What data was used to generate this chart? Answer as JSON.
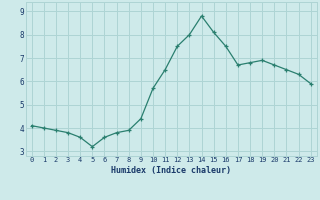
{
  "x": [
    0,
    1,
    2,
    3,
    4,
    5,
    6,
    7,
    8,
    9,
    10,
    11,
    12,
    13,
    14,
    15,
    16,
    17,
    18,
    19,
    20,
    21,
    22,
    23
  ],
  "y": [
    4.1,
    4.0,
    3.9,
    3.8,
    3.6,
    3.2,
    3.6,
    3.8,
    3.9,
    4.4,
    5.7,
    6.5,
    7.5,
    8.0,
    8.8,
    8.1,
    7.5,
    6.7,
    6.8,
    6.9,
    6.7,
    6.5,
    6.3,
    5.9
  ],
  "line_color": "#2a7f6f",
  "marker": "+",
  "marker_size": 3,
  "bg_color": "#ceeaea",
  "grid_color": "#aed4d4",
  "xlabel": "Humidex (Indice chaleur)",
  "xlabel_color": "#1a3a6a",
  "tick_label_color": "#1a3a6a",
  "ylim": [
    2.8,
    9.4
  ],
  "xlim": [
    -0.5,
    23.5
  ],
  "yticks": [
    3,
    4,
    5,
    6,
    7,
    8,
    9
  ],
  "xticks": [
    0,
    1,
    2,
    3,
    4,
    5,
    6,
    7,
    8,
    9,
    10,
    11,
    12,
    13,
    14,
    15,
    16,
    17,
    18,
    19,
    20,
    21,
    22,
    23
  ]
}
